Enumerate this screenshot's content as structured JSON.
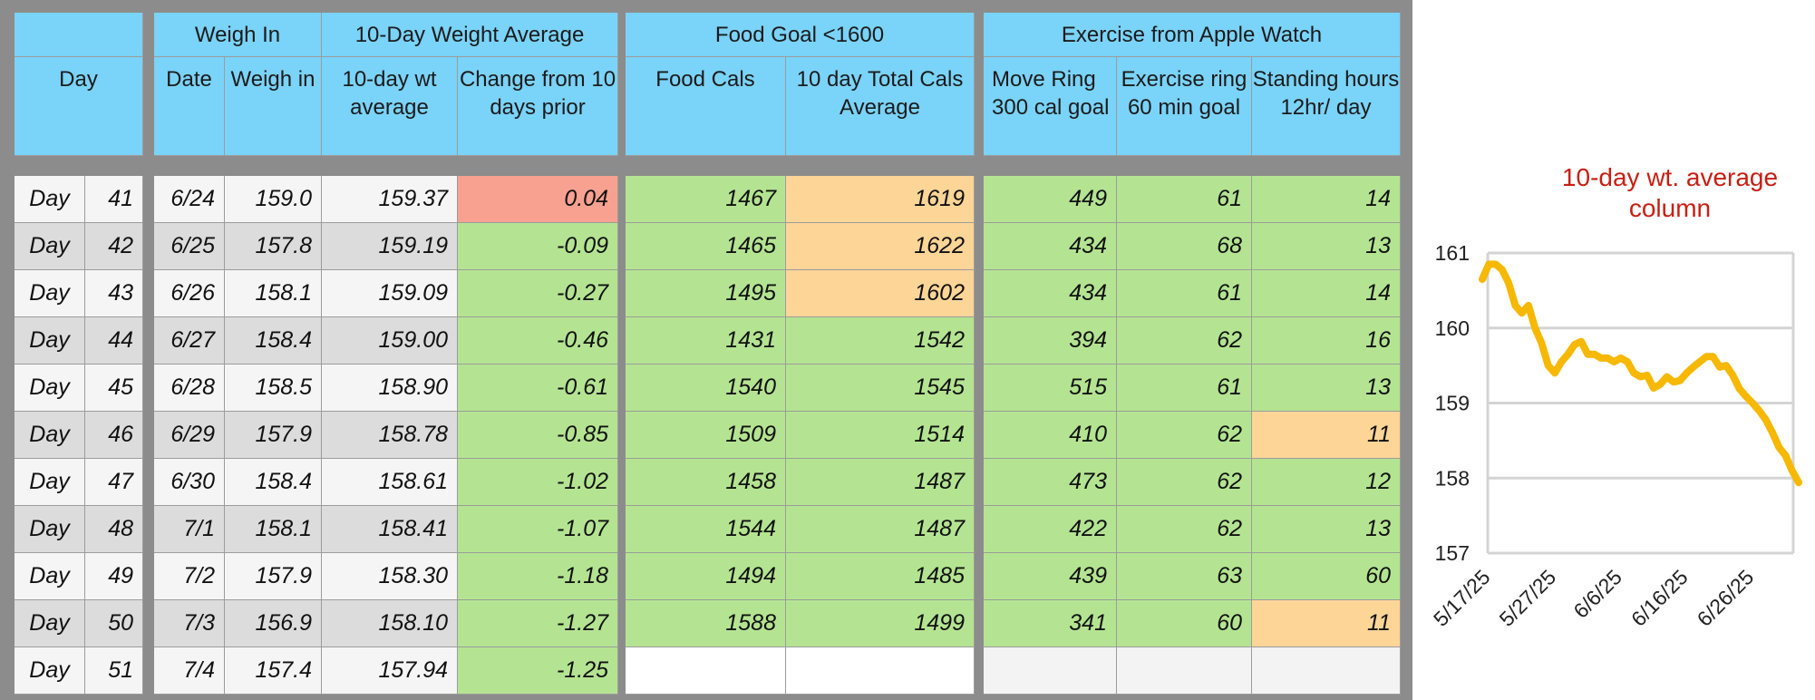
{
  "colors": {
    "header": "#7ad3f8",
    "green": "#b4e491",
    "orange": "#fdd597",
    "red": "#f9a190",
    "white": "#f5f5f5",
    "grey": "#dcdcdc",
    "blank": "#ffffff",
    "blank_grey": "#f3f3f3",
    "chart_line": "#f6b800",
    "chart_title": "#c81e12"
  },
  "headers": {
    "group": {
      "day": "",
      "weigh_in": "Weigh In",
      "avg": "10-Day Weight Average",
      "food": "Food Goal <1600",
      "exercise": "Exercise from Apple Watch"
    },
    "columns": {
      "day": "Day",
      "date": "Date",
      "weigh": "Weigh in",
      "avg": "10-day wt average",
      "change": "Change from 10 days prior",
      "food": "Food Cals",
      "total": "10 day Total Cals Average",
      "move": "Move Ring 300 cal goal",
      "exring": "Exercise ring 60 min goal",
      "stand": "Standing hours 12hr/ day"
    }
  },
  "rows": [
    {
      "label": "Day",
      "num": "41",
      "date": "6/24",
      "weigh": "159.0",
      "avg": "159.37",
      "change": "0.04",
      "food": "1467",
      "total": "1619",
      "move": "449",
      "exring": "61",
      "stand": "14"
    },
    {
      "label": "Day",
      "num": "42",
      "date": "6/25",
      "weigh": "157.8",
      "avg": "159.19",
      "change": "-0.09",
      "food": "1465",
      "total": "1622",
      "move": "434",
      "exring": "68",
      "stand": "13"
    },
    {
      "label": "Day",
      "num": "43",
      "date": "6/26",
      "weigh": "158.1",
      "avg": "159.09",
      "change": "-0.27",
      "food": "1495",
      "total": "1602",
      "move": "434",
      "exring": "61",
      "stand": "14"
    },
    {
      "label": "Day",
      "num": "44",
      "date": "6/27",
      "weigh": "158.4",
      "avg": "159.00",
      "change": "-0.46",
      "food": "1431",
      "total": "1542",
      "move": "394",
      "exring": "62",
      "stand": "16"
    },
    {
      "label": "Day",
      "num": "45",
      "date": "6/28",
      "weigh": "158.5",
      "avg": "158.90",
      "change": "-0.61",
      "food": "1540",
      "total": "1545",
      "move": "515",
      "exring": "61",
      "stand": "13"
    },
    {
      "label": "Day",
      "num": "46",
      "date": "6/29",
      "weigh": "157.9",
      "avg": "158.78",
      "change": "-0.85",
      "food": "1509",
      "total": "1514",
      "move": "410",
      "exring": "62",
      "stand": "11"
    },
    {
      "label": "Day",
      "num": "47",
      "date": "6/30",
      "weigh": "158.4",
      "avg": "158.61",
      "change": "-1.02",
      "food": "1458",
      "total": "1487",
      "move": "473",
      "exring": "62",
      "stand": "12"
    },
    {
      "label": "Day",
      "num": "48",
      "date": "7/1",
      "weigh": "158.1",
      "avg": "158.41",
      "change": "-1.07",
      "food": "1544",
      "total": "1487",
      "move": "422",
      "exring": "62",
      "stand": "13"
    },
    {
      "label": "Day",
      "num": "49",
      "date": "7/2",
      "weigh": "157.9",
      "avg": "158.30",
      "change": "-1.18",
      "food": "1494",
      "total": "1485",
      "move": "439",
      "exring": "63",
      "stand": "60"
    },
    {
      "label": "Day",
      "num": "50",
      "date": "7/3",
      "weigh": "156.9",
      "avg": "158.10",
      "change": "-1.27",
      "food": "1588",
      "total": "1499",
      "move": "341",
      "exring": "60",
      "stand": "11"
    },
    {
      "label": "Day",
      "num": "51",
      "date": "7/4",
      "weigh": "157.4",
      "avg": "157.94",
      "change": "-1.25",
      "food": "",
      "total": "",
      "move": "",
      "exring": "",
      "stand": ""
    }
  ],
  "row_fills": [
    {
      "change": "red",
      "food": "green",
      "total": "orange",
      "move": "green",
      "exring": "green",
      "stand": "green"
    },
    {
      "change": "green",
      "food": "green",
      "total": "orange",
      "move": "green",
      "exring": "green",
      "stand": "green"
    },
    {
      "change": "green",
      "food": "green",
      "total": "orange",
      "move": "green",
      "exring": "green",
      "stand": "green"
    },
    {
      "change": "green",
      "food": "green",
      "total": "green",
      "move": "green",
      "exring": "green",
      "stand": "green"
    },
    {
      "change": "green",
      "food": "green",
      "total": "green",
      "move": "green",
      "exring": "green",
      "stand": "green"
    },
    {
      "change": "green",
      "food": "green",
      "total": "green",
      "move": "green",
      "exring": "green",
      "stand": "orange"
    },
    {
      "change": "green",
      "food": "green",
      "total": "green",
      "move": "green",
      "exring": "green",
      "stand": "green"
    },
    {
      "change": "green",
      "food": "green",
      "total": "green",
      "move": "green",
      "exring": "green",
      "stand": "green"
    },
    {
      "change": "green",
      "food": "green",
      "total": "green",
      "move": "green",
      "exring": "green",
      "stand": "green"
    },
    {
      "change": "green",
      "food": "green",
      "total": "green",
      "move": "green",
      "exring": "green",
      "stand": "orange"
    },
    {
      "change": "green",
      "food": "blank",
      "total": "blank",
      "move": "blank_grey",
      "exring": "blank_grey",
      "stand": "blank_grey"
    }
  ],
  "chart_data": {
    "type": "line",
    "title": "10-day wt. average column",
    "xlabel": "",
    "ylabel": "",
    "ylim": [
      157,
      161
    ],
    "yticks": [
      "161",
      "160",
      "159",
      "158",
      "157"
    ],
    "xticks": [
      "5/17/25",
      "5/27/25",
      "6/6/25",
      "6/16/25",
      "6/26/25"
    ],
    "grid": true,
    "series": [
      {
        "values": [
          160.65,
          160.85,
          160.85,
          160.78,
          160.6,
          160.3,
          160.2,
          160.3,
          160.0,
          159.8,
          159.5,
          159.4,
          159.55,
          159.65,
          159.78,
          159.82,
          159.65,
          159.65,
          159.6,
          159.6,
          159.55,
          159.6,
          159.55,
          159.4,
          159.35,
          159.37,
          159.2,
          159.25,
          159.35,
          159.28,
          159.3,
          159.4,
          159.48,
          159.55,
          159.62,
          159.62,
          159.48,
          159.5,
          159.37,
          159.19,
          159.09,
          159.0,
          158.9,
          158.78,
          158.61,
          158.41,
          158.3,
          158.1,
          157.94
        ]
      }
    ]
  }
}
